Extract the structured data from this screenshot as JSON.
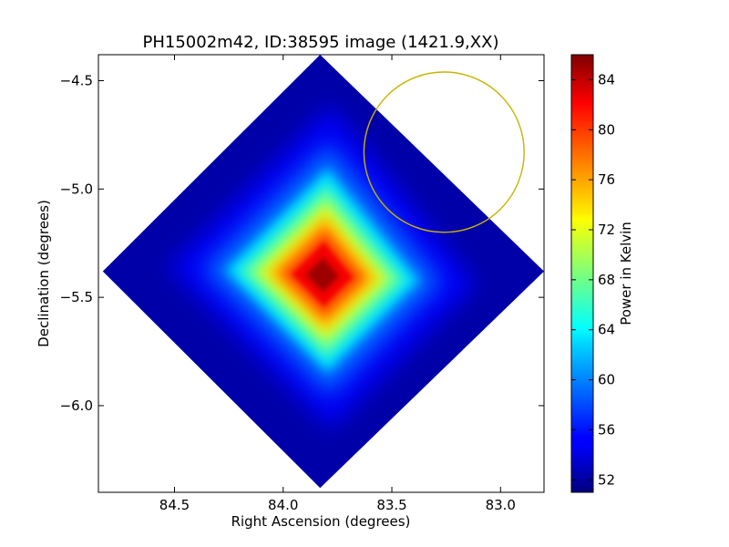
{
  "chart_data": {
    "type": "heatmap",
    "title": "PH15002m42, ID:38595 image (1421.9,XX)",
    "xlabel": "Right Ascension (degrees)",
    "ylabel": "Declination (degrees)",
    "xlim": [
      84.85,
      82.8
    ],
    "ylim": [
      -6.4,
      -4.38
    ],
    "x_ticks": [
      {
        "value": 84.5,
        "label": "84.5"
      },
      {
        "value": 84.0,
        "label": "84.0"
      },
      {
        "value": 83.5,
        "label": "83.5"
      },
      {
        "value": 83.0,
        "label": "83.0"
      }
    ],
    "y_ticks": [
      {
        "value": -4.5,
        "label": "−4.5"
      },
      {
        "value": -5.0,
        "label": "−5.0"
      },
      {
        "value": -5.5,
        "label": "−5.5"
      },
      {
        "value": -6.0,
        "label": "−6.0"
      }
    ],
    "colorbar": {
      "label": "Power in Kelvin",
      "range": [
        51,
        86
      ],
      "colormap": "jet",
      "ticks": [
        {
          "value": 52,
          "label": "52"
        },
        {
          "value": 56,
          "label": "56"
        },
        {
          "value": 60,
          "label": "60"
        },
        {
          "value": 64,
          "label": "64"
        },
        {
          "value": 68,
          "label": "68"
        },
        {
          "value": 72,
          "label": "72"
        },
        {
          "value": 76,
          "label": "76"
        },
        {
          "value": 80,
          "label": "80"
        },
        {
          "value": 84,
          "label": "84"
        }
      ]
    },
    "coverage_region": {
      "shape": "diamond",
      "vertices_ra_dec": [
        [
          83.83,
          -4.38
        ],
        [
          82.8,
          -5.38
        ],
        [
          83.83,
          -6.38
        ],
        [
          84.83,
          -5.38
        ]
      ]
    },
    "peak": {
      "ra": 83.82,
      "dec": -5.4,
      "value": 86
    },
    "annotation_circle": {
      "ra": 83.26,
      "dec": -4.83,
      "radius_deg": 0.37,
      "color": "#c8b400"
    }
  }
}
